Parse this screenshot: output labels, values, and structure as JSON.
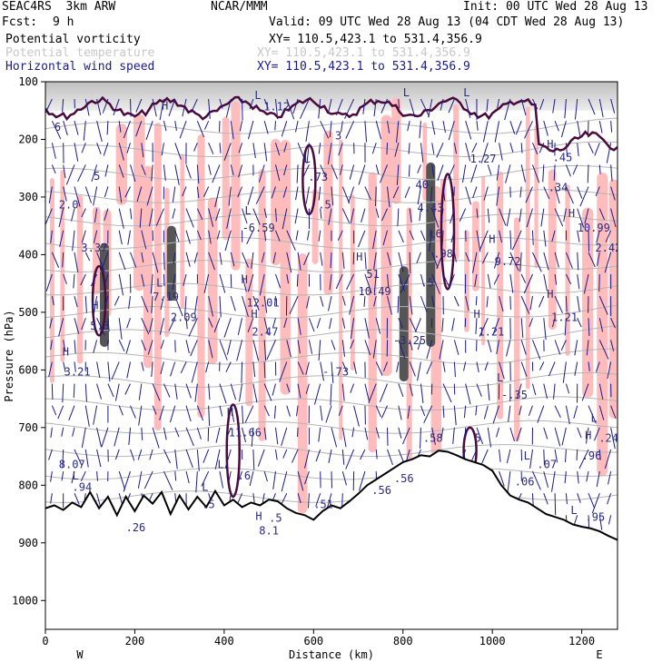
{
  "header": {
    "model": "SEAC4RS  3km ARW",
    "org": "NCAR/MMM",
    "init": "Init: 00 UTC Wed 28 Aug 13",
    "fcst_label": "Fcst:",
    "fcst_value": "9 h",
    "valid": "Valid: 09 UTC Wed 28 Aug 13 (04 CDT Wed 28 Aug 13)",
    "fields": [
      {
        "label": "Potential vorticity",
        "xy": "XY= 110.5,423.1 to 531.4,356.9",
        "color": "#000000"
      },
      {
        "label": "Potential temperature",
        "xy": "XY= 110.5,423.1 to 531.4,356.9",
        "color": "#c8c8c8"
      },
      {
        "label": "Horizontal wind speed",
        "xy": "XY= 110.5,423.1 to 531.4,356.9",
        "color": "#1a1a8c"
      }
    ]
  },
  "chart_data": {
    "type": "cross-section",
    "xlabel": "Distance (km)",
    "ylabel": "Pressure (hPa)",
    "xlim": [
      0,
      1280
    ],
    "ylim": [
      1050,
      100
    ],
    "x_ticks": [
      0,
      200,
      400,
      600,
      800,
      1000,
      1200
    ],
    "y_ticks": [
      100,
      200,
      300,
      400,
      500,
      600,
      700,
      800,
      900,
      1000
    ],
    "x_end_labels": {
      "left": "W",
      "right": "E"
    },
    "colors": {
      "pv_contour": "#4a0a3c",
      "theta_contour": "#b4b4b4",
      "wind_vector": "#1a1a8c",
      "pv_shading": "#ffbcbc",
      "label_text": "#2a2a80",
      "terrain_line": "#000000"
    },
    "terrain": [
      [
        0,
        840
      ],
      [
        20,
        835
      ],
      [
        40,
        843
      ],
      [
        60,
        830
      ],
      [
        80,
        838
      ],
      [
        100,
        812
      ],
      [
        120,
        840
      ],
      [
        140,
        820
      ],
      [
        160,
        852
      ],
      [
        180,
        820
      ],
      [
        200,
        845
      ],
      [
        220,
        818
      ],
      [
        240,
        832
      ],
      [
        260,
        812
      ],
      [
        280,
        850
      ],
      [
        300,
        818
      ],
      [
        320,
        842
      ],
      [
        340,
        820
      ],
      [
        360,
        838
      ],
      [
        380,
        810
      ],
      [
        400,
        835
      ],
      [
        420,
        825
      ],
      [
        440,
        838
      ],
      [
        460,
        830
      ],
      [
        480,
        835
      ],
      [
        500,
        825
      ],
      [
        520,
        828
      ],
      [
        540,
        840
      ],
      [
        560,
        848
      ],
      [
        580,
        852
      ],
      [
        600,
        860
      ],
      [
        620,
        845
      ],
      [
        640,
        835
      ],
      [
        660,
        840
      ],
      [
        680,
        828
      ],
      [
        700,
        815
      ],
      [
        720,
        800
      ],
      [
        740,
        790
      ],
      [
        760,
        780
      ],
      [
        780,
        770
      ],
      [
        800,
        760
      ],
      [
        820,
        755
      ],
      [
        840,
        748
      ],
      [
        860,
        750
      ],
      [
        880,
        740
      ],
      [
        900,
        742
      ],
      [
        920,
        748
      ],
      [
        940,
        755
      ],
      [
        960,
        760
      ],
      [
        980,
        765
      ],
      [
        1000,
        775
      ],
      [
        1020,
        800
      ],
      [
        1040,
        818
      ],
      [
        1060,
        825
      ],
      [
        1080,
        830
      ],
      [
        1100,
        840
      ],
      [
        1120,
        850
      ],
      [
        1140,
        855
      ],
      [
        1160,
        860
      ],
      [
        1180,
        868
      ],
      [
        1200,
        872
      ],
      [
        1220,
        875
      ],
      [
        1240,
        880
      ],
      [
        1260,
        888
      ],
      [
        1280,
        895
      ]
    ],
    "labels": [
      {
        "text": "6",
        "x": 20,
        "p": 185
      },
      {
        "text": "H",
        "x": 260,
        "p": 148
      },
      {
        "text": "L",
        "x": 468,
        "p": 130
      },
      {
        "text": "1.12",
        "x": 488,
        "p": 150
      },
      {
        "text": "3",
        "x": 648,
        "p": 200
      },
      {
        "text": "L",
        "x": 800,
        "p": 125
      },
      {
        "text": "L",
        "x": 935,
        "p": 125
      },
      {
        "text": "H",
        "x": 1122,
        "p": 215
      },
      {
        "text": ".45",
        "x": 1135,
        "p": 238
      },
      {
        "text": "1.27",
        "x": 950,
        "p": 240
      },
      {
        "text": "5",
        "x": 108,
        "p": 270
      },
      {
        "text": "L",
        "x": 578,
        "p": 240
      },
      {
        "text": ".73",
        "x": 588,
        "p": 272
      },
      {
        "text": ".5",
        "x": 610,
        "p": 320
      },
      {
        "text": "2.0",
        "x": 30,
        "p": 320
      },
      {
        "text": "40",
        "x": 828,
        "p": 285
      },
      {
        "text": "4.43",
        "x": 832,
        "p": 325
      },
      {
        "text": ".34",
        "x": 1125,
        "p": 290
      },
      {
        "text": "L",
        "x": 446,
        "p": 330
      },
      {
        "text": "-6.59",
        "x": 440,
        "p": 360
      },
      {
        "text": "H",
        "x": 1170,
        "p": 335
      },
      {
        "text": "10.99",
        "x": 1190,
        "p": 360
      },
      {
        "text": "3.37",
        "x": 80,
        "p": 395
      },
      {
        "text": "L6",
        "x": 858,
        "p": 370
      },
      {
        "text": ".98",
        "x": 868,
        "p": 405
      },
      {
        "text": "H",
        "x": 992,
        "p": 380
      },
      {
        "text": "9.72",
        "x": 1005,
        "p": 418
      },
      {
        "text": "2.42",
        "x": 1230,
        "p": 395
      },
      {
        "text": "H",
        "x": 695,
        "p": 410
      },
      {
        "text": "51",
        "x": 718,
        "p": 440
      },
      {
        "text": "10.49",
        "x": 700,
        "p": 470
      },
      {
        "text": ".5",
        "x": 840,
        "p": 455
      },
      {
        "text": "L",
        "x": 248,
        "p": 455
      },
      {
        "text": "7.19",
        "x": 240,
        "p": 480
      },
      {
        "text": "2.09",
        "x": 280,
        "p": 515
      },
      {
        "text": "H",
        "x": 438,
        "p": 450
      },
      {
        "text": "12.01",
        "x": 450,
        "p": 490
      },
      {
        "text": "H",
        "x": 1122,
        "p": 475
      },
      {
        "text": "1.21",
        "x": 1132,
        "p": 515
      },
      {
        "text": "H",
        "x": 104,
        "p": 495
      },
      {
        "text": "5.3",
        "x": 100,
        "p": 530
      },
      {
        "text": "H",
        "x": 460,
        "p": 510
      },
      {
        "text": "2.47",
        "x": 462,
        "p": 540
      },
      {
        "text": "H",
        "x": 958,
        "p": 510
      },
      {
        "text": "1.21",
        "x": 968,
        "p": 540
      },
      {
        "text": "-3.25",
        "x": 778,
        "p": 555
      },
      {
        "text": "H",
        "x": 38,
        "p": 575
      },
      {
        "text": "3.21",
        "x": 42,
        "p": 610
      },
      {
        "text": "-.73",
        "x": 620,
        "p": 610
      },
      {
        "text": "L",
        "x": 1010,
        "p": 620
      },
      {
        "text": "-.35",
        "x": 1020,
        "p": 650
      },
      {
        "text": "H",
        "x": 406,
        "p": 680
      },
      {
        "text": "11.66",
        "x": 410,
        "p": 715
      },
      {
        "text": "L",
        "x": 1220,
        "p": 690
      },
      {
        "text": ".58",
        "x": 845,
        "p": 725
      },
      {
        "text": "5",
        "x": 960,
        "p": 725
      },
      {
        "text": "H",
        "x": 1207,
        "p": 720
      },
      {
        "text": ".24",
        "x": 1238,
        "p": 725
      },
      {
        "text": "L",
        "x": 1070,
        "p": 755
      },
      {
        "text": ".07",
        "x": 1100,
        "p": 770
      },
      {
        "text": ".96",
        "x": 1200,
        "p": 755
      },
      {
        "text": "8.07",
        "x": 30,
        "p": 770
      },
      {
        "text": "L",
        "x": 385,
        "p": 770
      },
      {
        "text": ".6",
        "x": 430,
        "p": 790
      },
      {
        "text": ".06",
        "x": 1050,
        "p": 800
      },
      {
        "text": ".56",
        "x": 780,
        "p": 795
      },
      {
        "text": "L",
        "x": 350,
        "p": 810
      },
      {
        "text": ".94",
        "x": 60,
        "p": 810
      },
      {
        "text": ".5",
        "x": 350,
        "p": 840
      },
      {
        "text": "L",
        "x": 60,
        "p": 790
      },
      {
        "text": ".51",
        "x": 600,
        "p": 840
      },
      {
        "text": ".56",
        "x": 730,
        "p": 815
      },
      {
        "text": "H",
        "x": 470,
        "p": 860
      },
      {
        "text": ".5",
        "x": 500,
        "p": 863
      },
      {
        "text": "8.1",
        "x": 478,
        "p": 885
      },
      {
        "text": ".26",
        "x": 180,
        "p": 880
      },
      {
        "text": "L",
        "x": 1175,
        "p": 850
      },
      {
        "text": ".95",
        "x": 1208,
        "p": 862
      }
    ]
  }
}
